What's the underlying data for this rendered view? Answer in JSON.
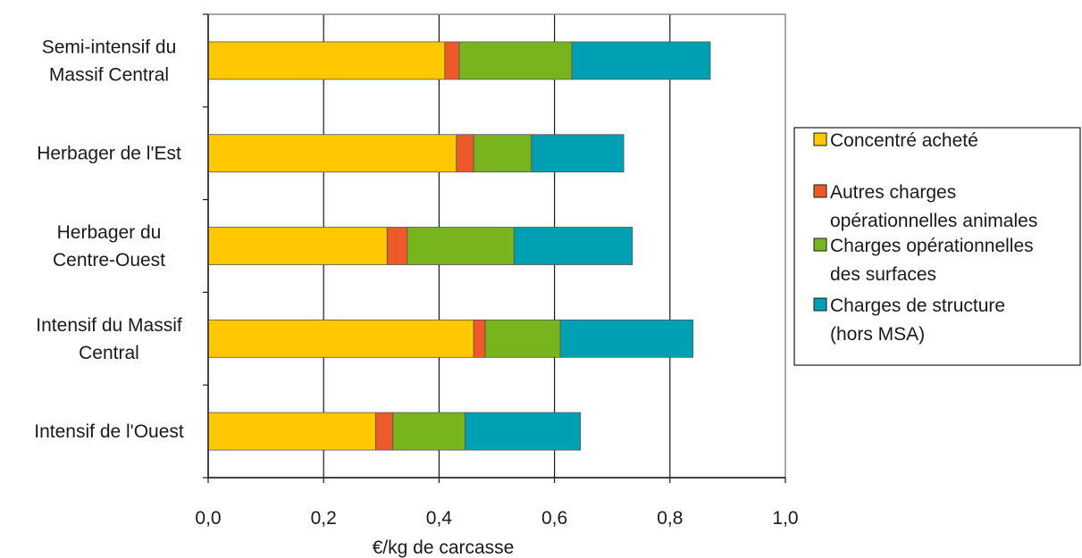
{
  "chart_data": {
    "type": "bar",
    "orientation": "horizontal",
    "stacked": true,
    "categories": [
      "Semi-intensif du Massif Central",
      "Herbager de l'Est",
      "Herbager du Centre-Ouest",
      "Intensif du Massif Central",
      "Intensif de l'Ouest"
    ],
    "category_label_lines": [
      [
        "Semi-intensif du",
        "Massif Central"
      ],
      [
        "Herbager de l'Est"
      ],
      [
        "Herbager du",
        "Centre-Ouest"
      ],
      [
        "Intensif du Massif",
        "Central"
      ],
      [
        "Intensif de l'Ouest"
      ]
    ],
    "series": [
      {
        "name": "Concentré acheté",
        "legend_lines": [
          "Concentré acheté"
        ],
        "color": "#FFC800",
        "values": [
          0.41,
          0.43,
          0.31,
          0.46,
          0.29
        ]
      },
      {
        "name": "Autres charges opérationnelles animales",
        "legend_lines": [
          "Autres charges",
          "opérationnelles animales"
        ],
        "color": "#EB5A28",
        "values": [
          0.025,
          0.03,
          0.035,
          0.02,
          0.03
        ]
      },
      {
        "name": "Charges opérationnelles des surfaces",
        "legend_lines": [
          "Charges opérationnelles",
          "des surfaces"
        ],
        "color": "#78B41E",
        "values": [
          0.195,
          0.1,
          0.185,
          0.13,
          0.125
        ]
      },
      {
        "name": "Charges de structure (hors MSA)",
        "legend_lines": [
          "Charges de structure",
          "(hors MSA)"
        ],
        "color": "#00A0B4",
        "values": [
          0.24,
          0.16,
          0.205,
          0.23,
          0.2
        ]
      }
    ],
    "xlabel": "€/kg de carcasse",
    "ylabel": "",
    "title": "",
    "xlim": [
      0,
      1.0
    ],
    "xticks": [
      "0,0",
      "0,2",
      "0,4",
      "0,6",
      "0,8",
      "1,0"
    ],
    "grid": "vertical",
    "legend_position": "right"
  }
}
